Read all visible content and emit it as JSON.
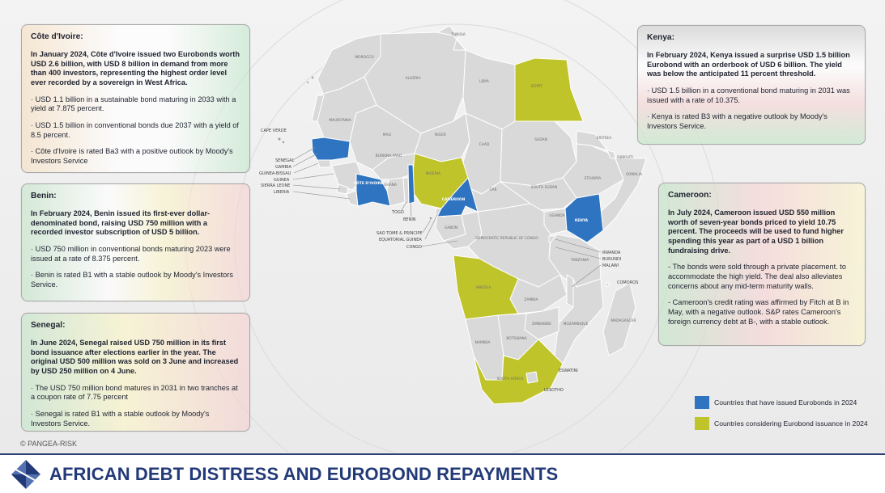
{
  "cards": {
    "cote_divoire": {
      "title": "Côte d'Ivoire:",
      "lead": "In January 2024, Côte d'Ivoire issued two Eurobonds worth USD 2.6 billion, with USD 8 billion in demand from more than 400 investors, representing the highest order level ever recorded by a sovereign in West Africa.",
      "bullets": [
        "· USD 1.1 billion in a sustainable bond maturing in 2033 with a yield at 7.875 percent.",
        "· USD 1.5 billion in conventional bonds due 2037 with a yield of 8.5 percent.",
        "· Côte d'Ivoire is rated Ba3 with a positive outlook by Moody's Investors Service"
      ]
    },
    "benin": {
      "title": "Benin:",
      "lead": "In February 2024, Benin issued its first-ever dollar-denominated bond, raising USD 750 million with a recorded investor subscription of USD 5 billion.",
      "bullets": [
        "· USD 750 million in conventional bonds maturing 2023 were issued at a rate of 8.375 percent.",
        "· Benin is rated B1 with a stable outlook by Moody's Investors Service."
      ]
    },
    "senegal": {
      "title": "Senegal:",
      "lead": "In June 2024, Senegal raised USD 750 million in its first bond issuance after elections earlier in the year. The original USD 500 million was sold on 3 June and increased by USD 250 million on 4 June.",
      "bullets": [
        "· The USD 750 million bond matures in 2031 in two tranches at a coupon rate of 7.75 percent",
        "· Senegal is rated B1 with a stable outlook by Moody's Investors Service."
      ]
    },
    "kenya": {
      "title": "Kenya:",
      "lead": "In February 2024, Kenya issued a surprise USD 1.5 billion Eurobond with an orderbook of USD 6 billion. The yield was below the anticipated 11 percent threshold.",
      "bullets": [
        "· USD 1.5 billion in a conventional bond maturing in 2031 was issued with a rate of 10.375.",
        "· Kenya is rated B3 with a negative outlook by Moody's Investors Service."
      ]
    },
    "cameroon": {
      "title": "Cameroon:",
      "lead": "In July 2024, Cameroon issued USD 550 million worth of seven-year bonds priced to yield 10.75 percent. The proceeds will be used to fund higher spending this year as part of a USD 1 billion fundraising drive.",
      "bullets": [
        "-  The bonds were sold through a private placement. to accommodate the high yield. The deal also alleviates concerns about any mid-term maturity walls.",
        "- Cameroon's credit rating was affirmed by Fitch at B in May, with a negative outlook. S&P rates Cameroon's foreign currency debt at B-, with a stable outlook."
      ]
    }
  },
  "legend": {
    "issued": {
      "label": "Countries that have issued Eurobonds in 2024",
      "color": "#2f74c0"
    },
    "considering": {
      "label": "Countries considering Eurobond issuance in 2024",
      "color": "#bfc42a"
    }
  },
  "map": {
    "issued_countries": [
      "SENEGAL",
      "CÔTE D'IVOIRE",
      "BENIN",
      "CAMEROON",
      "KENYA"
    ],
    "considering_countries": [
      "EGYPT",
      "NIGERIA",
      "ANGOLA",
      "SOUTH AFRICA"
    ],
    "labels": {
      "tunisia": "TUNISIA",
      "morocco": "MOROCCO",
      "algeria": "ALGERIA",
      "libya": "LIBYA",
      "egypt": "EGYPT",
      "mauritania": "MAURITANIA",
      "mali": "MALI",
      "niger": "NIGER",
      "chad": "CHAD",
      "sudan": "SUDAN",
      "eritrea": "ERITREA",
      "djibouti": "DJIBOUTI",
      "ethiopia": "ETHIOPIA",
      "somalia": "SOMALIA",
      "burkina_faso": "BURKINA FASO",
      "nigeria": "NIGERIA",
      "ghana": "GHANA",
      "cote_divoire": "CÔTE D'IVOIRE",
      "cameroon": "CAMEROON",
      "car": "CAR",
      "south_sudan": "SOUTH SUDAN",
      "uganda": "UGANDA",
      "kenya": "KENYA",
      "gabon": "GABON",
      "drc": "DEMOCRATIC REPUBLIC OF CONGO",
      "tanzania": "TANZANIA",
      "angola": "ANGOLA",
      "zambia": "ZAMBIA",
      "malawi": "MALAWI",
      "zimbabwe": "ZIMBABWE",
      "mozambique": "MOZAMBIQUE",
      "madagascar": "MADAGASCAR",
      "namibia": "NAMIBIA",
      "botswana": "BOTSWANA",
      "south_africa": "SOUTH AFRICA",
      "eswatini": "ESWATINI",
      "lesotho": "LESOTHO",
      "comoros": "COMOROS",
      "rwanda": "RWANDA",
      "burundi": "BURUNDI",
      "cape_verde": "CAPE VERDE",
      "senegal": "SENEGAL",
      "gambia": "GAMBIA",
      "guinea_bissau": "GUINEA-BISSAU",
      "guinea": "GUINEA",
      "sierra_leone": "SIERRA LEONE",
      "liberia": "LIBERIA",
      "togo": "TOGO",
      "benin": "BENIN",
      "sao_tome": "SAO TOME & PRINCIPE",
      "equatorial_guinea": "EQUATORIAL GUINEA",
      "congo": "CONGO"
    }
  },
  "copyright": "© PANGEA-RISK",
  "footer": {
    "title": "AFRICAN DEBT DISTRESS AND EUROBOND REPAYMENTS"
  },
  "colors": {
    "issued": "#2f74c0",
    "considering": "#bfc42a",
    "other": "#d9d9d9",
    "border": "#ffffff",
    "brand": "#233a78"
  }
}
